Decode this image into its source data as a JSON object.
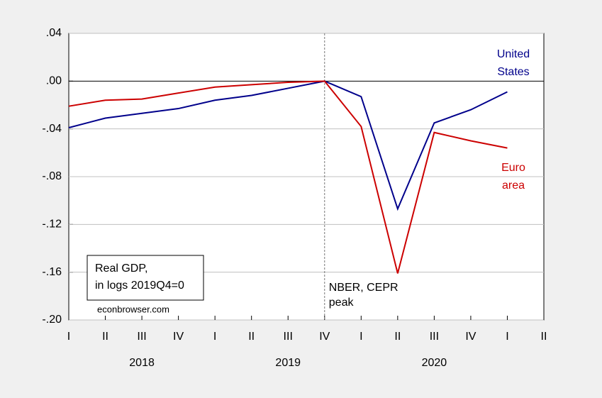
{
  "chart_data": {
    "type": "line",
    "categories": [
      "I",
      "II",
      "III",
      "IV",
      "I",
      "II",
      "III",
      "IV",
      "I",
      "II",
      "III",
      "IV",
      "I",
      "II"
    ],
    "years": [
      "2018",
      "2019",
      "2020"
    ],
    "series": [
      {
        "name": [
          "United",
          "States"
        ],
        "color": "#00008b",
        "values": [
          -0.039,
          -0.031,
          -0.027,
          -0.023,
          -0.016,
          -0.012,
          -0.006,
          0,
          -0.013,
          -0.107,
          -0.035,
          -0.024,
          -0.009,
          null
        ]
      },
      {
        "name": [
          "Euro",
          "area"
        ],
        "color": "#cc0000",
        "values": [
          -0.021,
          -0.016,
          -0.015,
          -0.01,
          -0.005,
          -0.003,
          -0.001,
          0,
          -0.038,
          -0.161,
          -0.043,
          -0.05,
          -0.056,
          null
        ]
      }
    ],
    "ylim": [
      -0.2,
      0.04
    ],
    "yticks": [
      {
        "value": 0.04,
        "label": ".04"
      },
      {
        "value": 0,
        "label": ".00"
      },
      {
        "value": -0.04,
        "label": "-.04"
      },
      {
        "value": -0.08,
        "label": "-.08"
      },
      {
        "value": -0.12,
        "label": "-.12"
      },
      {
        "value": -0.16,
        "label": "-.16"
      },
      {
        "value": -0.2,
        "label": "-.20"
      }
    ],
    "grid": true,
    "peak_annotation": [
      "NBER, CEPR",
      "peak"
    ],
    "box_text": [
      "Real GDP,",
      "in logs 2019Q4=0"
    ],
    "source": "econbrowser.com"
  }
}
